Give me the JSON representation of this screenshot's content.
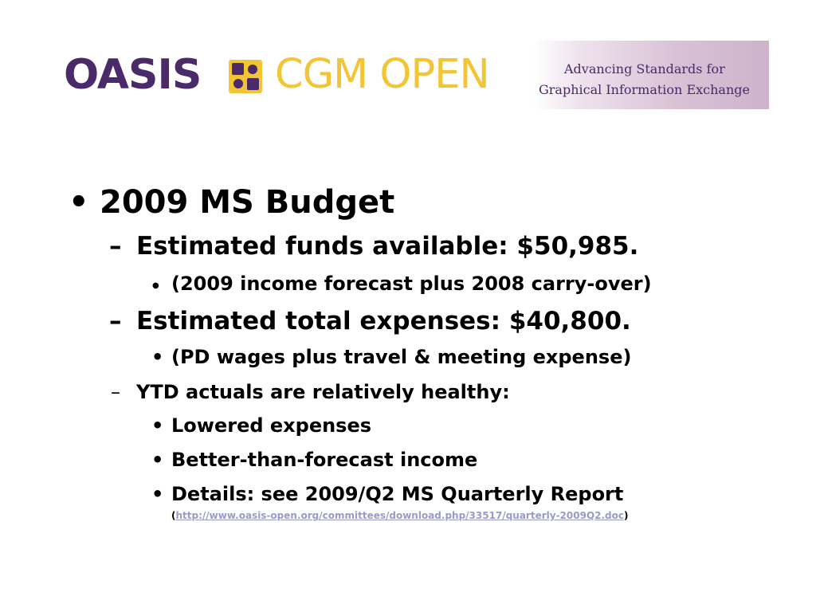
{
  "banner": {
    "logo_oasis": "OASIS",
    "logo_cgm": "CGM OPEN",
    "tagline_line1": "Advancing Standards for",
    "tagline_line2": "Graphical Information Exchange",
    "colors": {
      "purple": "#4a2a68",
      "gold": "#f3c433"
    }
  },
  "bullets": {
    "b1": "2009 MS Budget",
    "b1_1": "Estimated funds available:  $50,985.",
    "b1_1_1": "(2009 income forecast plus 2008 carry-over)",
    "b1_2": "Estimated total expenses:  $40,800.",
    "b1_2_1": "(PD wages plus travel & meeting expense)",
    "b1_3": "YTD actuals are relatively healthy:",
    "b1_3_1": "Lowered expenses",
    "b1_3_2": "Better-than-forecast income",
    "b1_3_3": "Details:  see 2009/Q2 MS Quarterly Report",
    "b1_3_3_link_open": "(",
    "b1_3_3_link": "http://www.oasis-open.org/committees/download.php/33517/quarterly-2009Q2.doc",
    "b1_3_3_link_close": ")"
  },
  "markers": {
    "bullet": "•",
    "dash": "–",
    "small_dot": "●"
  }
}
